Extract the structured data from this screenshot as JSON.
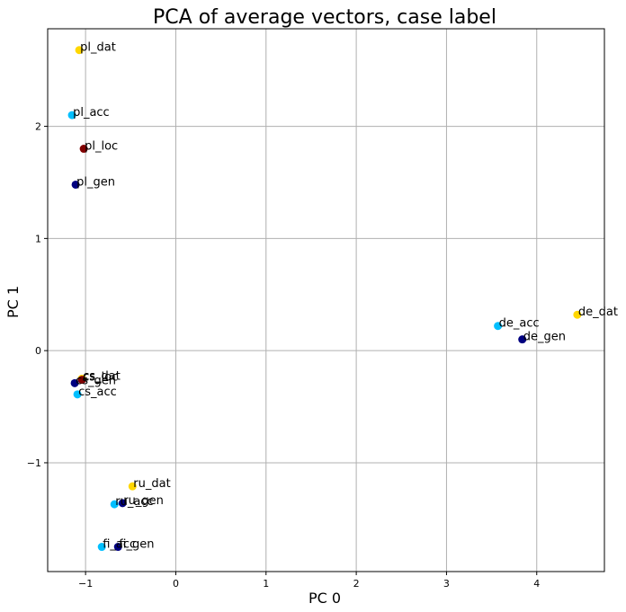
{
  "chart_data": {
    "type": "scatter",
    "title": "PCA of average vectors, case label",
    "xlabel": "PC 0",
    "ylabel": "PC 1",
    "xlim": [
      -1.42,
      4.75
    ],
    "ylim": [
      -1.97,
      2.87
    ],
    "xticks": [
      -1,
      0,
      1,
      2,
      3,
      4
    ],
    "yticks": [
      -1,
      0,
      1,
      2
    ],
    "xtick_labels": [
      "−1",
      "0",
      "1",
      "2",
      "3",
      "4"
    ],
    "ytick_labels": [
      "−1",
      "0",
      "1",
      "2"
    ],
    "grid": true,
    "legend": "none",
    "points": [
      {
        "label": "pl_dat",
        "x": -1.07,
        "y": 2.68,
        "color": "#ffd700"
      },
      {
        "label": "pl_acc",
        "x": -1.15,
        "y": 2.1,
        "color": "#00bfff"
      },
      {
        "label": "pl_loc",
        "x": -1.02,
        "y": 1.8,
        "color": "#800000"
      },
      {
        "label": "pl_gen",
        "x": -1.11,
        "y": 1.48,
        "color": "#000080"
      },
      {
        "label": "de_dat",
        "x": 4.45,
        "y": 0.32,
        "color": "#ffd700"
      },
      {
        "label": "de_acc",
        "x": 3.57,
        "y": 0.22,
        "color": "#00bfff"
      },
      {
        "label": "de_gen",
        "x": 3.84,
        "y": 0.1,
        "color": "#000080"
      },
      {
        "label": "cs_dat",
        "x": -1.04,
        "y": -0.25,
        "color": "#ffd700"
      },
      {
        "label": "cs_loc",
        "x": -1.04,
        "y": -0.26,
        "color": "#800000"
      },
      {
        "label": "cs_gen",
        "x": -1.12,
        "y": -0.29,
        "color": "#000080"
      },
      {
        "label": "cs_acc",
        "x": -1.09,
        "y": -0.39,
        "color": "#00bfff"
      },
      {
        "label": "ru_dat",
        "x": -0.48,
        "y": -1.21,
        "color": "#ffd700"
      },
      {
        "label": "ru_gen",
        "x": -0.59,
        "y": -1.36,
        "color": "#000080"
      },
      {
        "label": "ru_acc",
        "x": -0.68,
        "y": -1.37,
        "color": "#00bfff"
      },
      {
        "label": "fi_acc",
        "x": -0.82,
        "y": -1.75,
        "color": "#00bfff"
      },
      {
        "label": "fi_gen",
        "x": -0.64,
        "y": -1.75,
        "color": "#000080"
      }
    ]
  }
}
